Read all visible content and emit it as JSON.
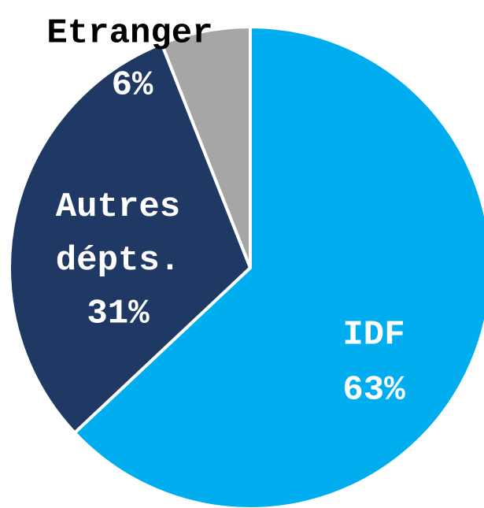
{
  "chart_data": {
    "type": "pie",
    "categories": [
      "IDF",
      "Autres dépts.",
      "Etranger"
    ],
    "values": [
      63,
      31,
      6
    ],
    "value_labels": [
      "63%",
      "31%",
      "6%"
    ],
    "colors": [
      "#00aeef",
      "#1f3864",
      "#a6a6a6"
    ]
  }
}
